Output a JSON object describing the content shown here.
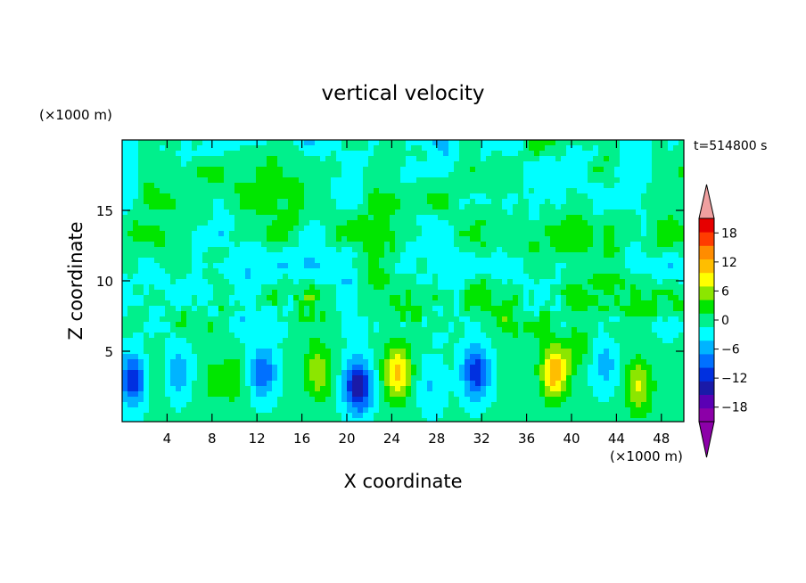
{
  "chart_data": {
    "type": "heatmap",
    "title": "vertical velocity",
    "xlabel": "X coordinate",
    "ylabel": "Z coordinate",
    "x_unit": "(×1000 m)",
    "y_unit": "(×1000 m)",
    "time_label": "t=514800 s",
    "xlim": [
      0,
      50
    ],
    "ylim": [
      0,
      20
    ],
    "x_ticks": [
      4,
      8,
      12,
      16,
      20,
      24,
      28,
      32,
      36,
      40,
      44,
      48
    ],
    "y_ticks": [
      5,
      10,
      15
    ],
    "colorbar": {
      "levels": [
        -21,
        -18,
        -15,
        -12,
        -9,
        -6,
        -3,
        0,
        3,
        6,
        9,
        12,
        15,
        18,
        21
      ],
      "tick_values": [
        -18,
        -12,
        -6,
        0,
        6,
        12,
        18
      ],
      "tick_labels": [
        "−18",
        "−12",
        "−6",
        "0",
        "6",
        "12",
        "18"
      ],
      "colors": [
        "#8c00a8",
        "#5a00b4",
        "#1a1aa8",
        "#0030e0",
        "#0070ff",
        "#00b4ff",
        "#00ffff",
        "#00f08c",
        "#00e600",
        "#8ce600",
        "#ffff00",
        "#ffbe00",
        "#ff8c00",
        "#ff3c00",
        "#e60000"
      ],
      "under_color": "#8c00a8",
      "over_color": "#f0a0a0"
    },
    "features": [
      {
        "x": 1.0,
        "z": 3.0,
        "w": -12
      },
      {
        "x": 3.0,
        "z": 3.5,
        "w": 3
      },
      {
        "x": 5.0,
        "z": 3.5,
        "w": -6
      },
      {
        "x": 8.0,
        "z": 3.0,
        "w": 3
      },
      {
        "x": 10.0,
        "z": 3.0,
        "w": 4
      },
      {
        "x": 12.5,
        "z": 3.5,
        "w": -9
      },
      {
        "x": 17.5,
        "z": 3.5,
        "w": 8
      },
      {
        "x": 21.0,
        "z": 2.5,
        "w": -15
      },
      {
        "x": 24.5,
        "z": 3.5,
        "w": 13
      },
      {
        "x": 27.5,
        "z": 2.5,
        "w": -4
      },
      {
        "x": 31.5,
        "z": 3.5,
        "w": -12
      },
      {
        "x": 38.5,
        "z": 3.5,
        "w": 14
      },
      {
        "x": 40.5,
        "z": 6.0,
        "w": 6
      },
      {
        "x": 43.0,
        "z": 4.0,
        "w": -5
      },
      {
        "x": 46.0,
        "z": 2.5,
        "w": 9
      }
    ]
  }
}
